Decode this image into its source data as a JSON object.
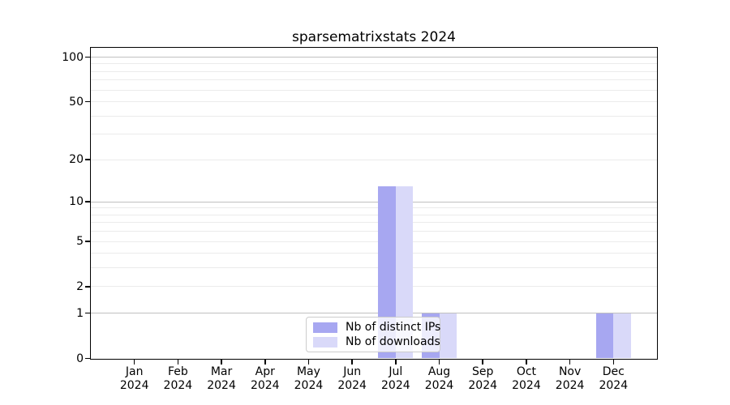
{
  "figure": {
    "title": "sparsematrixstats 2024"
  },
  "chart_data": {
    "type": "bar",
    "title": "sparsematrixstats 2024",
    "categories": [
      "Jan",
      "Feb",
      "Mar",
      "Apr",
      "May",
      "Jun",
      "Jul",
      "Aug",
      "Sep",
      "Oct",
      "Nov",
      "Dec"
    ],
    "x_year_line": "2024",
    "series": [
      {
        "name": "Nb of distinct IPs",
        "color": "#a7a7f1",
        "values": [
          0,
          0,
          0,
          0,
          0,
          0,
          13,
          1,
          0,
          0,
          0,
          1
        ]
      },
      {
        "name": "Nb of downloads",
        "color": "#d9d9f9",
        "values": [
          0,
          0,
          0,
          0,
          0,
          0,
          13,
          1,
          0,
          0,
          0,
          1
        ]
      }
    ],
    "y_axis": {
      "scale": "log1p",
      "tick_values": [
        0,
        1,
        2,
        5,
        10,
        20,
        50,
        100
      ],
      "tick_labels": [
        "0",
        "1",
        "2",
        "5",
        "10",
        "20",
        "50",
        "100"
      ],
      "grid_values": [
        1,
        2,
        3,
        4,
        5,
        6,
        7,
        8,
        9,
        10,
        20,
        30,
        40,
        50,
        60,
        70,
        80,
        90,
        100
      ],
      "major_grid_values": [
        1,
        10,
        100
      ],
      "max": 115
    },
    "xlabel": "",
    "ylabel": "",
    "grid": true,
    "legend_position": "lower center inside"
  },
  "colors": {
    "grid_major": "#c0c0c0",
    "grid_minor": "#ebebeb",
    "axis": "#000000",
    "background": "#ffffff"
  }
}
